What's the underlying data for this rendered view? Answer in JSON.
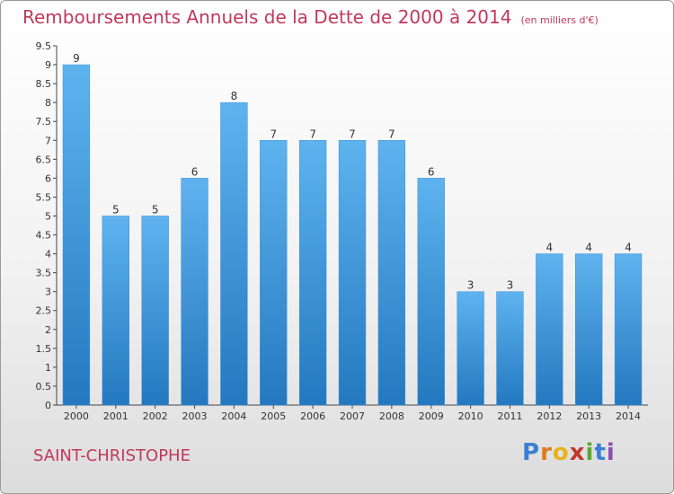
{
  "header": {
    "title": "Remboursements Annuels de la Dette de 2000 à 2014",
    "unit": "(en milliers d'€)"
  },
  "commune": "SAINT-CHRISTOPHE",
  "logo": {
    "letters": [
      "P",
      "r",
      "o",
      "x",
      "i",
      "t",
      "i"
    ],
    "colors": [
      "#3b7fd4",
      "#e07a1f",
      "#e8b21d",
      "#c0392b",
      "#5aa832",
      "#3b7fd4",
      "#8a4fb0"
    ]
  },
  "chart_data": {
    "type": "bar",
    "title": "Remboursements Annuels de la Dette de 2000 à 2014",
    "subtitle": "(en milliers d'€)",
    "categories": [
      "2000",
      "2001",
      "2002",
      "2003",
      "2004",
      "2005",
      "2006",
      "2007",
      "2008",
      "2009",
      "2010",
      "2011",
      "2012",
      "2013",
      "2014"
    ],
    "values": [
      9,
      5,
      5,
      6,
      8,
      7,
      7,
      7,
      7,
      6,
      3,
      3,
      4,
      4,
      4
    ],
    "ylim": [
      0,
      9.5
    ],
    "yticks": [
      "0",
      "0.5",
      "1",
      "1.5",
      "2",
      "2.5",
      "3",
      "3.5",
      "4",
      "4.5",
      "5",
      "5.5",
      "6",
      "6.5",
      "7",
      "7.5",
      "8",
      "8.5",
      "9",
      "9.5"
    ],
    "grid": false,
    "bar_color": "#4aa3e6"
  }
}
